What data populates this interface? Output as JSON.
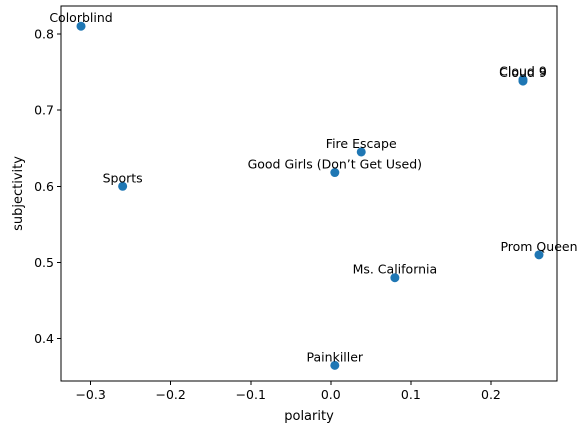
{
  "chart_data": {
    "type": "scatter",
    "title": "",
    "xlabel": "polarity",
    "ylabel": "subjectivity",
    "xlim": [
      -0.337,
      0.2825
    ],
    "ylim": [
      0.3445,
      0.8365
    ],
    "grid": false,
    "legend": "none",
    "color": "#1f77b4",
    "xticks": [
      -0.3,
      -0.2,
      -0.1,
      0.0,
      0.1,
      0.2
    ],
    "xtick_labels": [
      "−0.3",
      "−0.2",
      "−0.1",
      "0.0",
      "0.1",
      "0.2"
    ],
    "yticks": [
      0.4,
      0.5,
      0.6,
      0.7,
      0.8
    ],
    "ytick_labels": [
      "0.4",
      "0.5",
      "0.6",
      "0.7",
      "0.8"
    ],
    "points": [
      {
        "label": "Colorblind",
        "x": -0.312,
        "y": 0.81
      },
      {
        "label": "Cloud 9",
        "x": 0.24,
        "y": 0.738
      },
      {
        "label": "Cloud 9",
        "x": 0.24,
        "y": 0.74
      },
      {
        "label": "Fire Escape",
        "x": 0.038,
        "y": 0.645
      },
      {
        "label": "Good Girls (Don’t Get Used)",
        "x": 0.005,
        "y": 0.618
      },
      {
        "label": "Sports",
        "x": -0.26,
        "y": 0.6
      },
      {
        "label": "Prom Queen",
        "x": 0.26,
        "y": 0.51
      },
      {
        "label": "Ms. California",
        "x": 0.08,
        "y": 0.48
      },
      {
        "label": "Painkiller",
        "x": 0.005,
        "y": 0.365
      }
    ]
  }
}
